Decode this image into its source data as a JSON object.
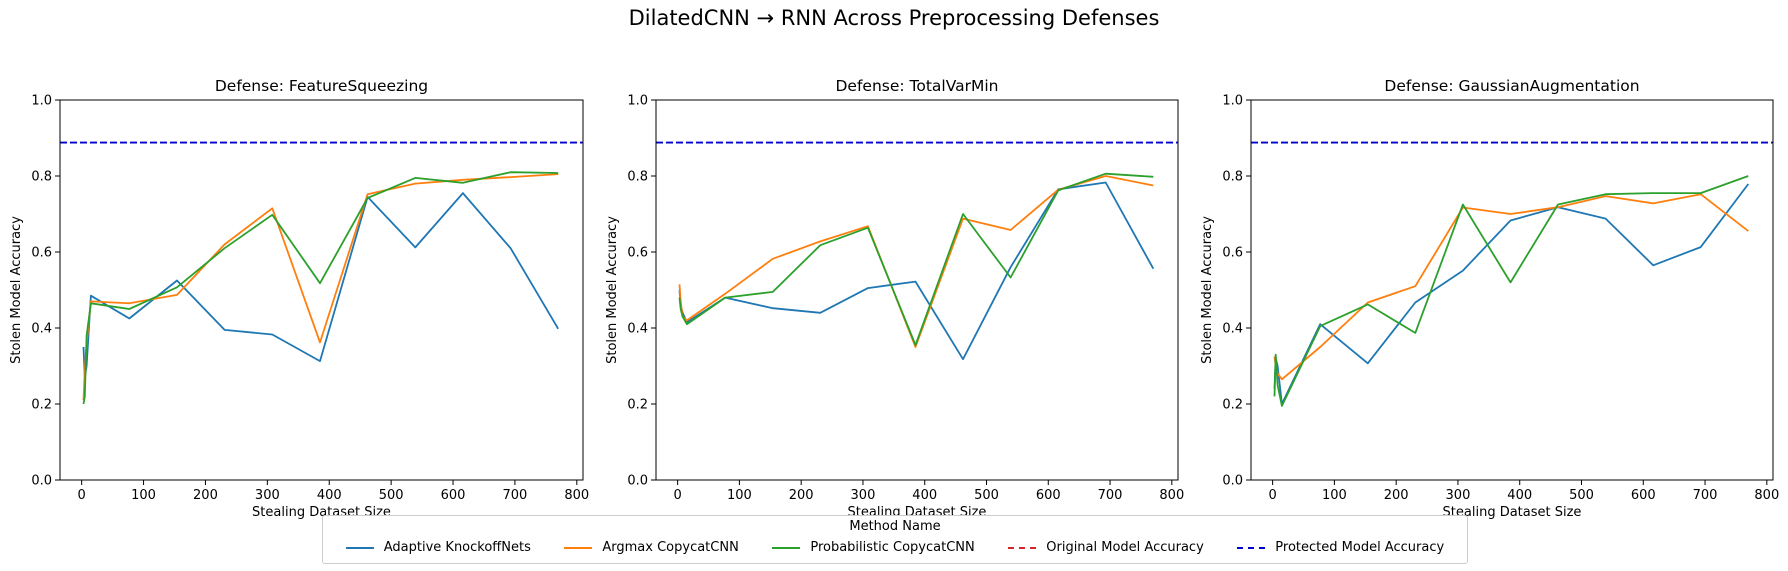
{
  "figure": {
    "suptitle": "DilatedCNN → RNN Across Preprocessing Defenses"
  },
  "legend": {
    "title": "Method Name",
    "items": [
      {
        "label": "Adaptive KnockoffNets",
        "color": "#1f77b4",
        "style": "solid"
      },
      {
        "label": "Argmax CopycatCNN",
        "color": "#ff7f0e",
        "style": "solid"
      },
      {
        "label": "Probabilistic CopycatCNN",
        "color": "#2ca02c",
        "style": "solid"
      },
      {
        "label": "Original Model Accuracy",
        "color": "#d62728",
        "style": "dashed"
      },
      {
        "label": "Protected Model Accuracy",
        "color": "#0000cc",
        "style": "dashed"
      }
    ]
  },
  "chart_data": [
    {
      "type": "line",
      "title": "Defense: FeatureSqueezing",
      "xlabel": "Stealing Dataset Size",
      "ylabel": "Stolen Model Accuracy",
      "xlim": [
        -35,
        810
      ],
      "ylim": [
        0,
        1.0
      ],
      "xticks": [
        0,
        100,
        200,
        300,
        400,
        500,
        600,
        700,
        800
      ],
      "yticks": [
        0.0,
        0.2,
        0.4,
        0.6,
        0.8,
        1.0
      ],
      "hlines": [
        {
          "name": "Protected Model Accuracy",
          "y": 0.888,
          "color": "#0000cc"
        }
      ],
      "series": [
        {
          "name": "Adaptive KnockoffNets",
          "color": "#1f77b4",
          "x": [
            3,
            5,
            8,
            15,
            77,
            154,
            231,
            308,
            385,
            462,
            539,
            616,
            693,
            770
          ],
          "y": [
            0.35,
            0.27,
            0.3,
            0.485,
            0.425,
            0.525,
            0.395,
            0.383,
            0.313,
            0.745,
            0.612,
            0.755,
            0.61,
            0.398
          ]
        },
        {
          "name": "Argmax CopycatCNN",
          "color": "#ff7f0e",
          "x": [
            3,
            5,
            8,
            15,
            77,
            154,
            231,
            308,
            385,
            462,
            539,
            616,
            693,
            770
          ],
          "y": [
            0.21,
            0.29,
            0.36,
            0.47,
            0.465,
            0.487,
            0.62,
            0.715,
            0.362,
            0.752,
            0.78,
            0.79,
            0.797,
            0.805
          ]
        },
        {
          "name": "Probabilistic CopycatCNN",
          "color": "#2ca02c",
          "x": [
            3,
            5,
            8,
            15,
            77,
            154,
            231,
            308,
            385,
            462,
            539,
            616,
            693,
            770
          ],
          "y": [
            0.2,
            0.22,
            0.38,
            0.465,
            0.45,
            0.507,
            0.61,
            0.698,
            0.518,
            0.742,
            0.795,
            0.782,
            0.81,
            0.808
          ]
        }
      ]
    },
    {
      "type": "line",
      "title": "Defense: TotalVarMin",
      "xlabel": "Stealing Dataset Size",
      "ylabel": "Stolen Model Accuracy",
      "xlim": [
        -35,
        810
      ],
      "ylim": [
        0,
        1.0
      ],
      "xticks": [
        0,
        100,
        200,
        300,
        400,
        500,
        600,
        700,
        800
      ],
      "yticks": [
        0.0,
        0.2,
        0.4,
        0.6,
        0.8,
        1.0
      ],
      "hlines": [
        {
          "name": "Protected Model Accuracy",
          "y": 0.888,
          "color": "#0000cc"
        }
      ],
      "series": [
        {
          "name": "Adaptive KnockoffNets",
          "color": "#1f77b4",
          "x": [
            3,
            5,
            8,
            15,
            77,
            154,
            231,
            308,
            385,
            462,
            539,
            616,
            693,
            770
          ],
          "y": [
            0.5,
            0.46,
            0.44,
            0.415,
            0.48,
            0.452,
            0.44,
            0.505,
            0.522,
            0.318,
            0.56,
            0.765,
            0.783,
            0.556
          ]
        },
        {
          "name": "Argmax CopycatCNN",
          "color": "#ff7f0e",
          "x": [
            3,
            5,
            8,
            15,
            77,
            154,
            231,
            308,
            385,
            462,
            539,
            616,
            693,
            770
          ],
          "y": [
            0.515,
            0.47,
            0.43,
            0.42,
            0.49,
            0.582,
            0.628,
            0.668,
            0.35,
            0.688,
            0.658,
            0.764,
            0.8,
            0.775
          ]
        },
        {
          "name": "Probabilistic CopycatCNN",
          "color": "#2ca02c",
          "x": [
            3,
            5,
            8,
            15,
            77,
            154,
            231,
            308,
            385,
            462,
            539,
            616,
            693,
            770
          ],
          "y": [
            0.48,
            0.45,
            0.43,
            0.41,
            0.48,
            0.495,
            0.618,
            0.664,
            0.355,
            0.7,
            0.533,
            0.762,
            0.806,
            0.798
          ]
        }
      ]
    },
    {
      "type": "line",
      "title": "Defense: GaussianAugmentation",
      "xlabel": "Stealing Dataset Size",
      "ylabel": "Stolen Model Accuracy",
      "xlim": [
        -35,
        810
      ],
      "ylim": [
        0,
        1.0
      ],
      "xticks": [
        0,
        100,
        200,
        300,
        400,
        500,
        600,
        700,
        800
      ],
      "yticks": [
        0.0,
        0.2,
        0.4,
        0.6,
        0.8,
        1.0
      ],
      "hlines": [
        {
          "name": "Protected Model Accuracy",
          "y": 0.888,
          "color": "#0000cc"
        }
      ],
      "series": [
        {
          "name": "Adaptive KnockoffNets",
          "color": "#1f77b4",
          "x": [
            3,
            5,
            8,
            15,
            77,
            154,
            231,
            308,
            385,
            462,
            539,
            616,
            693,
            770
          ],
          "y": [
            0.24,
            0.32,
            0.3,
            0.2,
            0.41,
            0.307,
            0.467,
            0.551,
            0.683,
            0.718,
            0.688,
            0.565,
            0.613,
            0.779
          ]
        },
        {
          "name": "Argmax CopycatCNN",
          "color": "#ff7f0e",
          "x": [
            3,
            5,
            8,
            15,
            77,
            154,
            231,
            308,
            385,
            462,
            539,
            616,
            693,
            770
          ],
          "y": [
            0.325,
            0.3,
            0.28,
            0.265,
            0.35,
            0.467,
            0.51,
            0.717,
            0.7,
            0.718,
            0.747,
            0.728,
            0.752,
            0.655
          ]
        },
        {
          "name": "Probabilistic CopycatCNN",
          "color": "#2ca02c",
          "x": [
            3,
            5,
            8,
            15,
            77,
            154,
            231,
            308,
            385,
            462,
            539,
            616,
            693,
            770
          ],
          "y": [
            0.22,
            0.33,
            0.25,
            0.195,
            0.405,
            0.462,
            0.387,
            0.725,
            0.52,
            0.725,
            0.752,
            0.755,
            0.755,
            0.8
          ]
        }
      ]
    }
  ]
}
